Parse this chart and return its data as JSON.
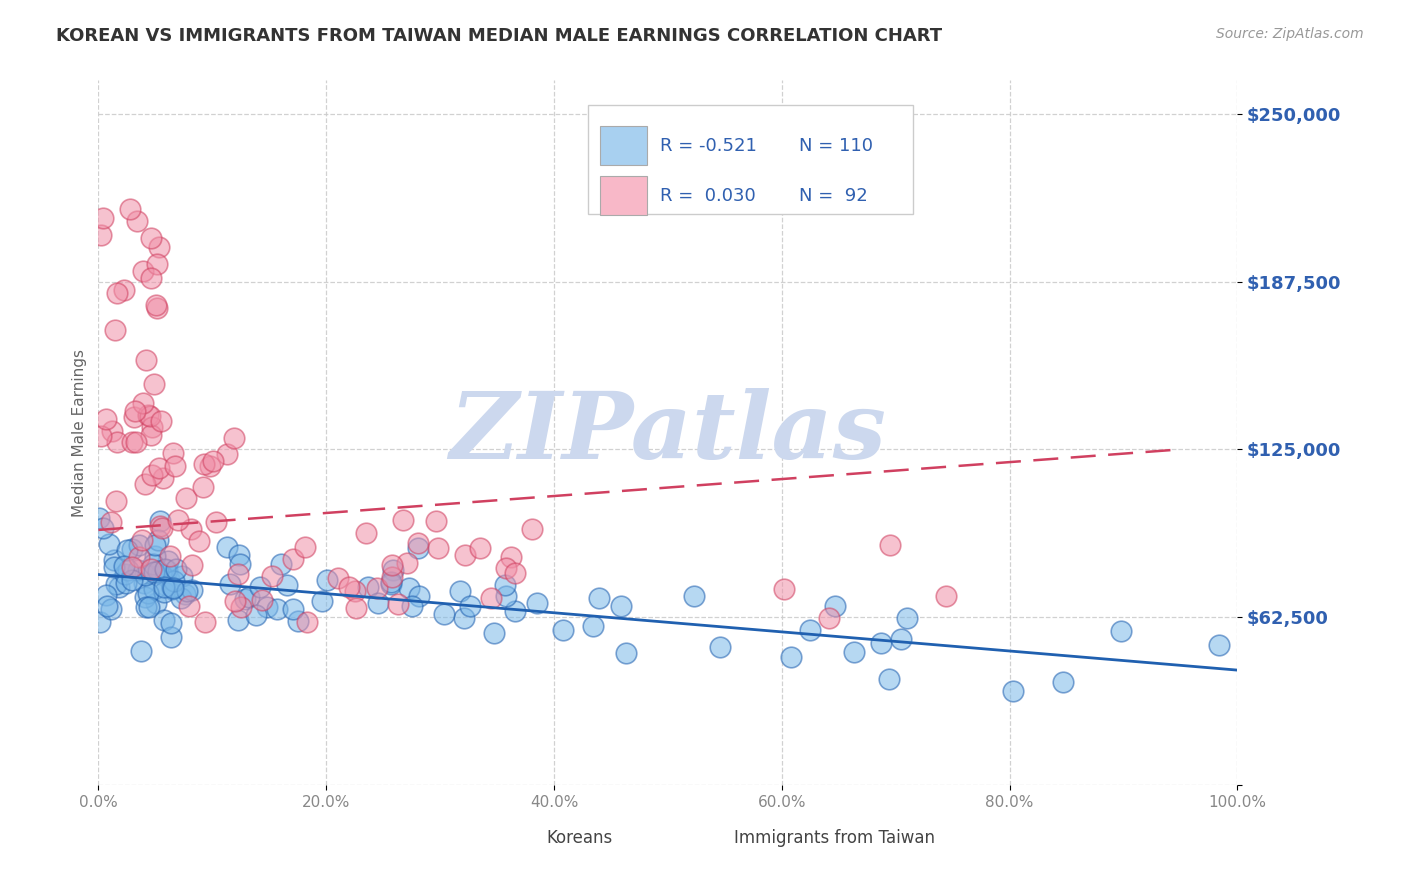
{
  "title": "KOREAN VS IMMIGRANTS FROM TAIWAN MEDIAN MALE EARNINGS CORRELATION CHART",
  "source": "Source: ZipAtlas.com",
  "ylabel": "Median Male Earnings",
  "watermark": "ZIPatlas",
  "xlim": [
    0.0,
    1.0
  ],
  "ylim": [
    0,
    262500
  ],
  "yticks": [
    0,
    62500,
    125000,
    187500,
    250000
  ],
  "ytick_labels": [
    "",
    "$62,500",
    "$125,000",
    "$187,500",
    "$250,000"
  ],
  "xtick_labels": [
    "0.0%",
    "20.0%",
    "40.0%",
    "60.0%",
    "80.0%",
    "100.0%"
  ],
  "xticks": [
    0.0,
    0.2,
    0.4,
    0.6,
    0.8,
    1.0
  ],
  "korean_color": "#7bb8e8",
  "korean_line_color": "#2060b0",
  "korean_legend_color": "#a8d0f0",
  "taiwan_color": "#f090a8",
  "taiwan_line_color": "#d04060",
  "taiwan_legend_color": "#f8b8c8",
  "legend_text_color": "#3060b0",
  "title_color": "#333333",
  "axis_label_color": "#666666",
  "ytick_color": "#3060b0",
  "xtick_color": "#888888",
  "grid_color": "#cccccc",
  "background_color": "#ffffff",
  "watermark_color": "#ccd8ee",
  "korean_R": -0.521,
  "korean_N": 110,
  "taiwan_R": 0.03,
  "taiwan_N": 92
}
